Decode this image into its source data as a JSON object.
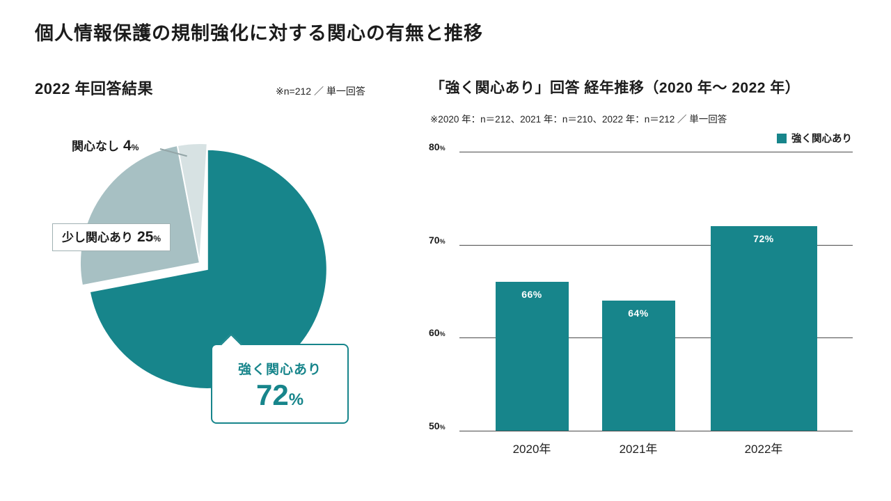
{
  "page": {
    "title": "個人情報保護の規制強化に対する関心の有無と推移"
  },
  "colors": {
    "teal": "#17858b",
    "slight_slice": "#a7c0c3",
    "none_slice": "#d7e2e3",
    "text": "#1c1c1c",
    "grid": "#4a4a4a",
    "bar_value_label": "#ffffff"
  },
  "pie_section": {
    "heading": "2022 年回答結果",
    "note": "※n=212 ／ 単一回答",
    "none_label": {
      "label": "関心なし",
      "value": "4",
      "unit": "%"
    },
    "slight_label": {
      "label": "少し関心あり",
      "value": "25",
      "unit": "%"
    },
    "callout": {
      "label": "強く関心あり",
      "value": "72",
      "unit": "%"
    }
  },
  "bar_section": {
    "heading": "「強く関心あり」回答 経年推移（2020 年～ 2022 年）",
    "note": "※2020 年：n＝212、2021 年：n＝210、2022 年：n＝212 ／ 単一回答",
    "legend": "強く関心あり"
  },
  "chart_data": [
    {
      "type": "pie",
      "title": "2022 年回答結果",
      "note": "※n=212 ／ 単一回答",
      "start_angle": "top",
      "direction": "clockwise",
      "slices": [
        {
          "label": "強く関心あり",
          "value": 72,
          "color": "#17858b",
          "exploded": true
        },
        {
          "label": "少し関心あり",
          "value": 25,
          "color": "#a7c0c3",
          "exploded": false
        },
        {
          "label": "関心なし",
          "value": 4,
          "color": "#d7e2e3",
          "exploded": false
        }
      ]
    },
    {
      "type": "bar",
      "title": "「強く関心あり」回答 経年推移（2020 年～ 2022 年）",
      "note": "※2020 年：n＝212、2021 年：n＝210、2022 年：n＝212 ／ 単一回答",
      "categories": [
        "2020年",
        "2021年",
        "2022年"
      ],
      "series": [
        {
          "name": "強く関心あり",
          "values": [
            66,
            64,
            72
          ]
        }
      ],
      "unit": "%",
      "ylim": [
        50,
        80
      ],
      "yticks": [
        80,
        70,
        60,
        50
      ],
      "grid": true,
      "legend_position": "top-right",
      "bar_color": "#17858b"
    }
  ]
}
